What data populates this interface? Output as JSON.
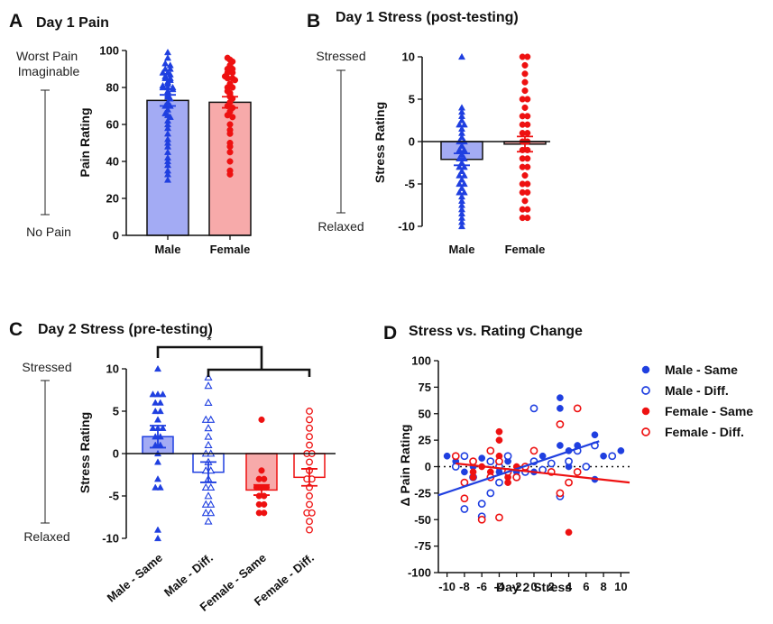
{
  "colors": {
    "male": "#1f3fe0",
    "female": "#ee1111",
    "male_bar": "#a3abf4",
    "female_bar": "#f7aaaa",
    "axis": "#111111"
  },
  "chart_data": [
    {
      "panel": "A",
      "type": "bar",
      "title": "Day 1 Pain",
      "ylabel": "Pain Rating",
      "ylim": [
        0,
        100
      ],
      "yticks": [
        0,
        20,
        40,
        60,
        80,
        100
      ],
      "categories": [
        "Male",
        "Female"
      ],
      "anchors": {
        "top": "Worst Pain Imaginable",
        "bottom": "No Pain"
      },
      "bars": [
        {
          "name": "Male",
          "mean": 73,
          "sem": 3,
          "marker": "triangle",
          "points": [
            99,
            96,
            93,
            92,
            90,
            90,
            88,
            88,
            87,
            86,
            85,
            85,
            84,
            83,
            82,
            81,
            80,
            80,
            80,
            79,
            78,
            77,
            76,
            75,
            74,
            72,
            70,
            70,
            68,
            66,
            65,
            64,
            62,
            60,
            58,
            55,
            52,
            50,
            48,
            45,
            42,
            40,
            38,
            35,
            33,
            30
          ]
        },
        {
          "name": "Female",
          "mean": 72,
          "sem": 3,
          "marker": "circle",
          "points": [
            96,
            95,
            94,
            92,
            90,
            90,
            88,
            88,
            86,
            85,
            85,
            84,
            82,
            80,
            80,
            78,
            77,
            76,
            75,
            74,
            72,
            70,
            69,
            67,
            65,
            64,
            60,
            57,
            55,
            50,
            48,
            45,
            40,
            35,
            33
          ]
        }
      ]
    },
    {
      "panel": "B",
      "type": "bar",
      "title": "Day 1 Stress (post-testing)",
      "ylabel": "Stress Rating",
      "ylim": [
        -10,
        10
      ],
      "yticks": [
        -10,
        -5,
        0,
        5,
        10
      ],
      "categories": [
        "Male",
        "Female"
      ],
      "anchors": {
        "top": "Stressed",
        "bottom": "Relaxed"
      },
      "bars": [
        {
          "name": "Male",
          "mean": -2.1,
          "sem": 0.7,
          "marker": "triangle",
          "points": [
            10,
            4,
            3.5,
            3,
            2.5,
            2,
            2,
            1.5,
            1,
            0.5,
            0,
            0,
            -0.5,
            -1,
            -1,
            -1.5,
            -2,
            -2,
            -2.5,
            -3,
            -3,
            -3.5,
            -4,
            -4,
            -4.5,
            -5,
            -5,
            -5.5,
            -6,
            -6,
            -6.5,
            -7,
            -7.5,
            -8,
            -8.5,
            -9,
            -9.5,
            -10
          ]
        },
        {
          "name": "Female",
          "mean": -0.3,
          "sem": 0.9,
          "marker": "circle",
          "points": [
            10,
            10,
            9,
            8,
            7,
            6,
            5,
            5,
            4,
            3,
            3,
            2,
            2,
            1,
            1,
            0,
            0,
            -1,
            -1,
            -2,
            -2,
            -3,
            -3,
            -4,
            -5,
            -5,
            -6,
            -6,
            -7,
            -8,
            -8,
            -9,
            -9
          ]
        }
      ]
    },
    {
      "panel": "C",
      "type": "bar",
      "title": "Day 2 Stress (pre-testing)",
      "ylabel": "Stress Rating",
      "ylim": [
        -10,
        10
      ],
      "yticks": [
        -10,
        -5,
        0,
        5,
        10
      ],
      "categories": [
        "Male - Same",
        "Male - Diff.",
        "Female - Same",
        "Female - Diff."
      ],
      "anchors": {
        "top": "Stressed",
        "bottom": "Relaxed"
      },
      "significance": "*",
      "bars": [
        {
          "name": "Male - Same",
          "mean": 2,
          "sem": 1.3,
          "marker": "triangle-filled",
          "points": [
            10,
            7,
            7,
            7,
            6,
            6,
            5,
            5,
            4,
            3,
            3,
            3,
            2,
            2,
            1,
            1,
            0,
            -1,
            -3,
            -4,
            -4,
            -9,
            -10
          ]
        },
        {
          "name": "Male - Diff.",
          "mean": -2.2,
          "sem": 1.2,
          "marker": "triangle-open",
          "points": [
            9,
            8,
            6,
            4,
            4,
            3,
            2,
            1,
            0,
            0,
            -1,
            -2,
            -2,
            -3,
            -4,
            -4,
            -5,
            -6,
            -6,
            -7,
            -7,
            -8
          ]
        },
        {
          "name": "Female - Same",
          "mean": -4.3,
          "sem": 0.6,
          "marker": "circle-filled",
          "points": [
            4,
            -2,
            -3,
            -3,
            -4,
            -4,
            -4,
            -5,
            -5,
            -6,
            -6,
            -7,
            -7
          ]
        },
        {
          "name": "Female - Diff.",
          "mean": -2.8,
          "sem": 1.0,
          "marker": "circle-open",
          "points": [
            5,
            4,
            3,
            2,
            1,
            0,
            0,
            -1,
            -2,
            -3,
            -3,
            -4,
            -5,
            -6,
            -7,
            -7,
            -8,
            -9
          ]
        }
      ]
    },
    {
      "panel": "D",
      "type": "scatter",
      "title": "Stress vs. Rating Change",
      "xlabel": "Day 2 Stress",
      "ylabel": "Δ Pain Rating",
      "xlim": [
        -11,
        11
      ],
      "ylim": [
        -100,
        100
      ],
      "xticks": [
        -10,
        -8,
        -6,
        -4,
        -2,
        0,
        2,
        4,
        6,
        8,
        10
      ],
      "yticks": [
        -100,
        -75,
        -50,
        -25,
        0,
        25,
        50,
        75,
        100
      ],
      "legend": "right",
      "series": [
        {
          "name": "Male - Same",
          "color": "#1f3fe0",
          "filled": true,
          "points": [
            [
              -10,
              10
            ],
            [
              -9,
              5
            ],
            [
              -8,
              -5
            ],
            [
              -7,
              0
            ],
            [
              -6,
              8
            ],
            [
              -5,
              -10
            ],
            [
              -4,
              -5
            ],
            [
              -3,
              5
            ],
            [
              -2,
              -5
            ],
            [
              -1,
              0
            ],
            [
              0,
              -5
            ],
            [
              1,
              10
            ],
            [
              3,
              65
            ],
            [
              3,
              55
            ],
            [
              3,
              20
            ],
            [
              4,
              15
            ],
            [
              4,
              0
            ],
            [
              5,
              20
            ],
            [
              5,
              15
            ],
            [
              6,
              0
            ],
            [
              7,
              30
            ],
            [
              7,
              20
            ],
            [
              7,
              -12
            ],
            [
              10,
              15
            ],
            [
              8,
              10
            ]
          ]
        },
        {
          "name": "Male - Diff.",
          "color": "#1f3fe0",
          "filled": false,
          "points": [
            [
              -9,
              0
            ],
            [
              -8,
              -40
            ],
            [
              -8,
              10
            ],
            [
              -7,
              -10
            ],
            [
              -6,
              -35
            ],
            [
              -6,
              -47
            ],
            [
              -5,
              5
            ],
            [
              -5,
              -25
            ],
            [
              -4,
              0
            ],
            [
              -4,
              -15
            ],
            [
              -3,
              10
            ],
            [
              -2,
              -10
            ],
            [
              -1,
              -5
            ],
            [
              0,
              55
            ],
            [
              0,
              5
            ],
            [
              1,
              -3
            ],
            [
              2,
              3
            ],
            [
              3,
              -28
            ],
            [
              4,
              5
            ],
            [
              5,
              15
            ],
            [
              6,
              0
            ],
            [
              7,
              20
            ],
            [
              9,
              10
            ]
          ]
        },
        {
          "name": "Female - Same",
          "color": "#ee1111",
          "filled": true,
          "points": [
            [
              -4,
              33
            ],
            [
              -4,
              25
            ],
            [
              -4,
              10
            ],
            [
              -5,
              -5
            ],
            [
              -3,
              -10
            ],
            [
              -3,
              -15
            ],
            [
              -2,
              0
            ],
            [
              -6,
              0
            ],
            [
              -7,
              -5
            ],
            [
              -7,
              -10
            ],
            [
              4,
              -62
            ]
          ]
        },
        {
          "name": "Female - Diff.",
          "color": "#ee1111",
          "filled": false,
          "points": [
            [
              -9,
              10
            ],
            [
              -8,
              -15
            ],
            [
              -8,
              -30
            ],
            [
              -7,
              5
            ],
            [
              -6,
              -50
            ],
            [
              -5,
              15
            ],
            [
              -5,
              -10
            ],
            [
              -4,
              -48
            ],
            [
              -4,
              5
            ],
            [
              -3,
              -5
            ],
            [
              -2,
              -10
            ],
            [
              -1,
              0
            ],
            [
              0,
              15
            ],
            [
              2,
              -5
            ],
            [
              3,
              40
            ],
            [
              3,
              -25
            ],
            [
              4,
              -15
            ],
            [
              5,
              55
            ],
            [
              5,
              -5
            ]
          ]
        }
      ],
      "fits": [
        {
          "series": "Male",
          "color": "#1f3fe0",
          "x0": -11,
          "y0": -27,
          "x1": 7.5,
          "y1": 24
        },
        {
          "series": "Female",
          "color": "#ee1111",
          "x0": -9,
          "y0": 3,
          "x1": 11,
          "y1": -15
        }
      ]
    }
  ],
  "panels": {
    "A": {
      "label": "A"
    },
    "B": {
      "label": "B"
    },
    "C": {
      "label": "C"
    },
    "D": {
      "label": "D"
    }
  }
}
